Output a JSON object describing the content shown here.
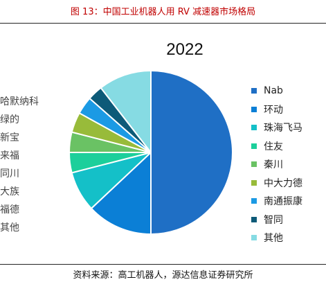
{
  "figure": {
    "title": "图 13：中国工业机器人用 RV 减速器市场格局",
    "source": "资料来源：高工机器人，源达信息证券研究所"
  },
  "left_list": [
    "哈默纳科",
    "绿的",
    "新宝",
    "来福",
    "同川",
    "大族",
    "福德",
    "其他"
  ],
  "chart_data": {
    "type": "pie",
    "title": "2022",
    "legend_position": "right",
    "start_angle": "top, clockwise",
    "categories": [
      "Nab",
      "环动",
      "珠海飞马",
      "住友",
      "秦川",
      "中大力德",
      "南通振康",
      "智同",
      "其他"
    ],
    "values": [
      50,
      13,
      8,
      4,
      4,
      4,
      3.5,
      3,
      10.5
    ],
    "colors": [
      "#1f6fc5",
      "#0b7fd6",
      "#14c0c8",
      "#1ccf9b",
      "#6ac264",
      "#98bb3a",
      "#1b9ae4",
      "#0d5a78",
      "#86dbe3"
    ]
  }
}
